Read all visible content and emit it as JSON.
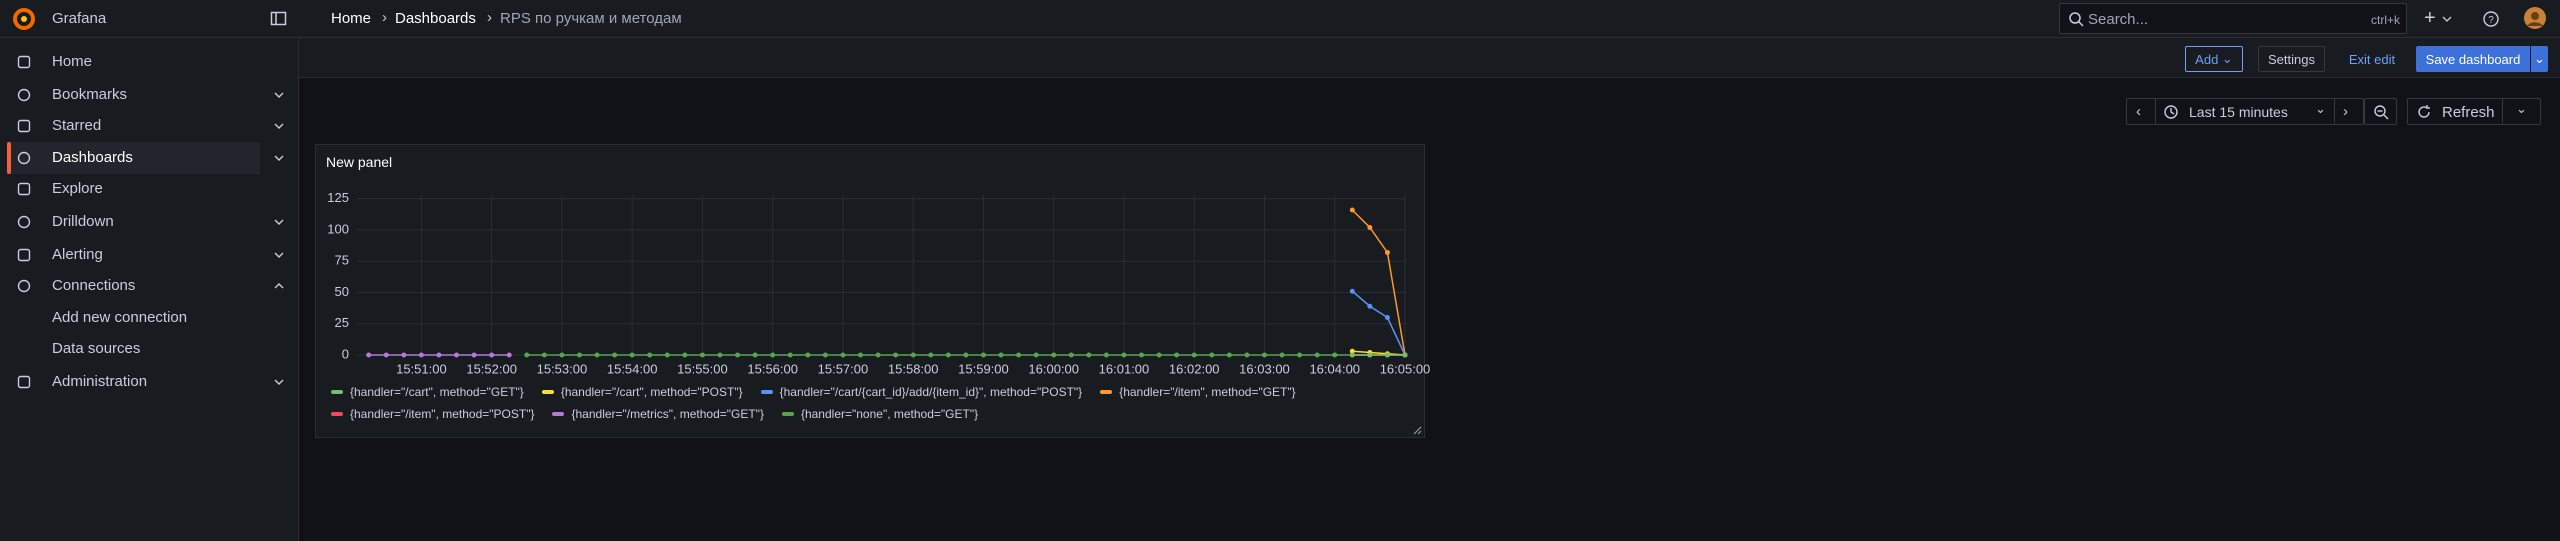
{
  "header": {
    "app": "Grafana",
    "breadcrumbs": [
      "Home",
      "Dashboards",
      "RPS по ручкам и методам"
    ],
    "search": "Search...",
    "shortcut": "ctrl+k"
  },
  "sidebar": {
    "items": [
      "Home",
      "Bookmarks",
      "Starred",
      "Dashboards",
      "Explore",
      "Drilldown",
      "Alerting",
      "Connections",
      "Add new connection",
      "Data sources",
      "Administration"
    ]
  },
  "toolbar": {
    "add": "Add",
    "settings": "Settings",
    "exit": "Exit edit",
    "save": "Save dashboard",
    "time_range": "Last 15 minutes",
    "refresh": "Refresh"
  },
  "chart_data": {
    "type": "line",
    "title": "New panel",
    "xlim": [
      "15:50:05",
      "16:05:00"
    ],
    "xticks": [
      "15:51:00",
      "15:52:00",
      "15:53:00",
      "15:54:00",
      "15:55:00",
      "15:56:00",
      "15:57:00",
      "15:58:00",
      "15:59:00",
      "16:00:00",
      "16:01:00",
      "16:02:00",
      "16:03:00",
      "16:04:00",
      "16:05:00"
    ],
    "ylim": [
      0,
      128
    ],
    "yticks": [
      0,
      25,
      50,
      75,
      100,
      125
    ],
    "grid": true,
    "series": [
      {
        "name": "{handler=\"/cart\", method=\"GET\"}",
        "color": "#73bf69",
        "x": [
          "16:04:15",
          "16:04:30",
          "16:04:45",
          "16:05:00"
        ],
        "values": [
          0,
          0,
          0,
          0
        ]
      },
      {
        "name": "{handler=\"/cart\", method=\"POST\"}",
        "color": "#fade2a",
        "x": [
          "16:04:15",
          "16:04:30",
          "16:04:45",
          "16:05:00"
        ],
        "values": [
          3,
          2,
          1,
          0
        ]
      },
      {
        "name": "{handler=\"/cart/{cart_id}/add/{item_id}\", method=\"POST\"}",
        "color": "#5794f2",
        "x": [
          "16:04:15",
          "16:04:30",
          "16:04:45",
          "16:05:00"
        ],
        "values": [
          51,
          39,
          30,
          0
        ]
      },
      {
        "name": "{handler=\"/item\", method=\"GET\"}",
        "color": "#ff9830",
        "x": [
          "16:04:15",
          "16:04:30",
          "16:04:45",
          "16:05:00"
        ],
        "values": [
          116,
          102,
          82,
          0
        ]
      },
      {
        "name": "{handler=\"/item\", method=\"POST\"}",
        "color": "#f2495c",
        "x": [
          "16:04:15",
          "16:04:30",
          "16:04:45",
          "16:05:00"
        ],
        "values": [
          0,
          0,
          0,
          0
        ]
      },
      {
        "name": "{handler=\"/metrics\", method=\"GET\"}",
        "color": "#b877d9",
        "x": [
          "15:50:15",
          "15:50:30",
          "15:50:45",
          "15:51:00",
          "15:51:15",
          "15:51:30",
          "15:51:45",
          "15:52:00",
          "15:52:15"
        ],
        "values": [
          0,
          0,
          0,
          0,
          0,
          0,
          0,
          0,
          0
        ]
      },
      {
        "name": "{handler=\"none\", method=\"GET\"}",
        "color": "#56a64b",
        "x": [
          "15:52:30",
          "15:52:45",
          "15:53:00",
          "15:53:15",
          "15:53:30",
          "15:53:45",
          "15:54:00",
          "15:54:15",
          "15:54:30",
          "15:54:45",
          "15:55:00",
          "15:55:15",
          "15:55:30",
          "15:55:45",
          "15:56:00",
          "15:56:15",
          "15:56:30",
          "15:56:45",
          "15:57:00",
          "15:57:15",
          "15:57:30",
          "15:57:45",
          "15:58:00",
          "15:58:15",
          "15:58:30",
          "15:58:45",
          "15:59:00",
          "15:59:15",
          "15:59:30",
          "15:59:45",
          "16:00:00",
          "16:00:15",
          "16:00:30",
          "16:00:45",
          "16:01:00",
          "16:01:15",
          "16:01:30",
          "16:01:45",
          "16:02:00",
          "16:02:15",
          "16:02:30",
          "16:02:45",
          "16:03:00",
          "16:03:15",
          "16:03:30",
          "16:03:45",
          "16:04:00",
          "16:04:15",
          "16:04:30",
          "16:04:45",
          "16:05:00"
        ],
        "values": [
          0,
          0,
          0,
          0,
          0,
          0,
          0,
          0,
          0,
          0,
          0,
          0,
          0,
          0,
          0,
          0,
          0,
          0,
          0,
          0,
          0,
          0,
          0,
          0,
          0,
          0,
          0,
          0,
          0,
          0,
          0,
          0,
          0,
          0,
          0,
          0,
          0,
          0,
          0,
          0,
          0,
          0,
          0,
          0,
          0,
          0,
          0,
          0,
          0,
          0,
          0
        ]
      }
    ]
  }
}
